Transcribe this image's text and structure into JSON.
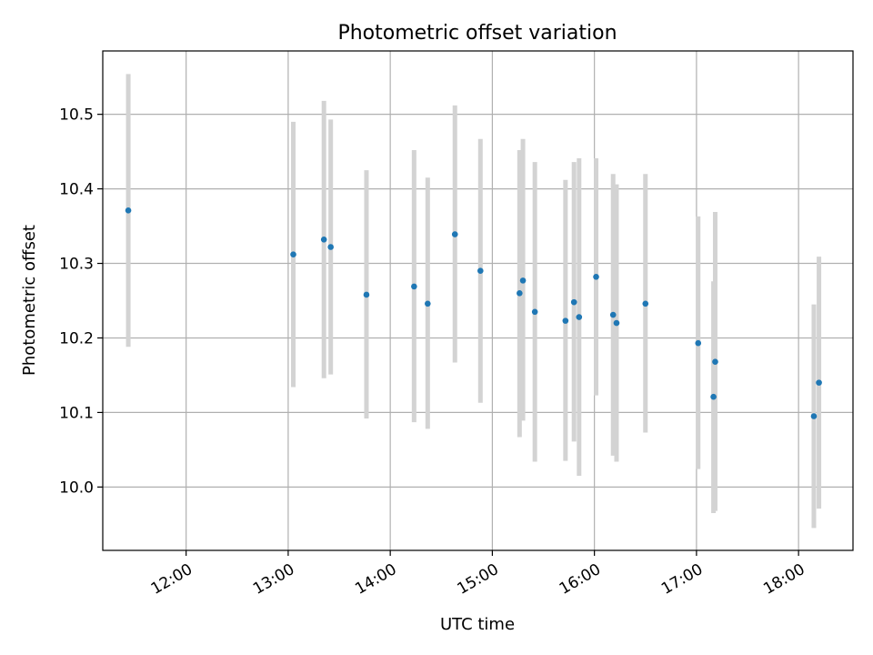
{
  "chart_data": {
    "type": "scatter",
    "title": "Photometric offset variation",
    "xlabel": "UTC time",
    "ylabel": "Photometric offset",
    "xlim": [
      "11:11",
      "18:32"
    ],
    "ylim": [
      9.915,
      10.585
    ],
    "x_ticks": [
      "12:00",
      "13:00",
      "14:00",
      "15:00",
      "16:00",
      "17:00",
      "18:00"
    ],
    "y_ticks": [
      10.0,
      10.1,
      10.2,
      10.3,
      10.4,
      10.5
    ],
    "grid": true,
    "colors": {
      "points": "#1f77b4",
      "errorbars": "#d3d3d3"
    },
    "points": [
      {
        "x": "11:26",
        "y": 10.371,
        "err_low": 10.188,
        "err_high": 10.554
      },
      {
        "x": "13:03",
        "y": 10.312,
        "err_low": 10.134,
        "err_high": 10.49
      },
      {
        "x": "13:21",
        "y": 10.332,
        "err_low": 10.146,
        "err_high": 10.518
      },
      {
        "x": "13:25",
        "y": 10.322,
        "err_low": 10.151,
        "err_high": 10.493
      },
      {
        "x": "13:46",
        "y": 10.258,
        "err_low": 10.092,
        "err_high": 10.425
      },
      {
        "x": "14:14",
        "y": 10.269,
        "err_low": 10.087,
        "err_high": 10.452
      },
      {
        "x": "14:22",
        "y": 10.246,
        "err_low": 10.078,
        "err_high": 10.415
      },
      {
        "x": "14:38",
        "y": 10.339,
        "err_low": 10.167,
        "err_high": 10.512
      },
      {
        "x": "14:53",
        "y": 10.29,
        "err_low": 10.113,
        "err_high": 10.467
      },
      {
        "x": "15:16",
        "y": 10.26,
        "err_low": 10.067,
        "err_high": 10.452
      },
      {
        "x": "15:18",
        "y": 10.277,
        "err_low": 10.089,
        "err_high": 10.467
      },
      {
        "x": "15:25",
        "y": 10.235,
        "err_low": 10.034,
        "err_high": 10.436
      },
      {
        "x": "15:43",
        "y": 10.223,
        "err_low": 10.035,
        "err_high": 10.412
      },
      {
        "x": "15:48",
        "y": 10.248,
        "err_low": 10.061,
        "err_high": 10.436
      },
      {
        "x": "15:51",
        "y": 10.228,
        "err_low": 10.015,
        "err_high": 10.441
      },
      {
        "x": "16:01",
        "y": 10.282,
        "err_low": 10.123,
        "err_high": 10.441
      },
      {
        "x": "16:11",
        "y": 10.231,
        "err_low": 10.042,
        "err_high": 10.42
      },
      {
        "x": "16:13",
        "y": 10.22,
        "err_low": 10.034,
        "err_high": 10.406
      },
      {
        "x": "16:30",
        "y": 10.246,
        "err_low": 10.073,
        "err_high": 10.42
      },
      {
        "x": "17:01",
        "y": 10.193,
        "err_low": 10.024,
        "err_high": 10.363
      },
      {
        "x": "17:10",
        "y": 10.121,
        "err_low": 9.965,
        "err_high": 10.276
      },
      {
        "x": "17:11",
        "y": 10.168,
        "err_low": 9.968,
        "err_high": 10.369
      },
      {
        "x": "18:09",
        "y": 10.095,
        "err_low": 9.945,
        "err_high": 10.245
      },
      {
        "x": "18:12",
        "y": 10.14,
        "err_low": 9.971,
        "err_high": 10.309
      }
    ]
  }
}
